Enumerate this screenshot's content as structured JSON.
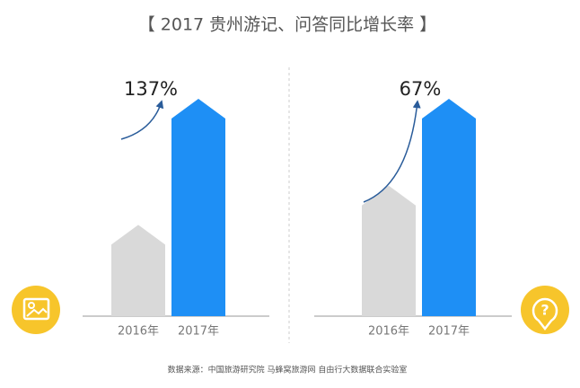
{
  "title": "【 2017 贵州游记、问答同比增长率 】",
  "source": "数据来源：中国旅游研究院 马蜂窝旅游网 自由行大数据联合实验室",
  "chart_data": [
    {
      "type": "bar",
      "categories": [
        "2016年",
        "2017年"
      ],
      "values": [
        42,
        100
      ],
      "colors": [
        "#d9d9d9",
        "#1e8ff5"
      ],
      "ylim": [
        0,
        100
      ],
      "annotation": "137%"
    },
    {
      "type": "bar",
      "categories": [
        "2016年",
        "2017年"
      ],
      "values": [
        60,
        100
      ],
      "colors": [
        "#d9d9d9",
        "#1e8ff5"
      ],
      "ylim": [
        0,
        100
      ],
      "annotation": "67%"
    }
  ]
}
